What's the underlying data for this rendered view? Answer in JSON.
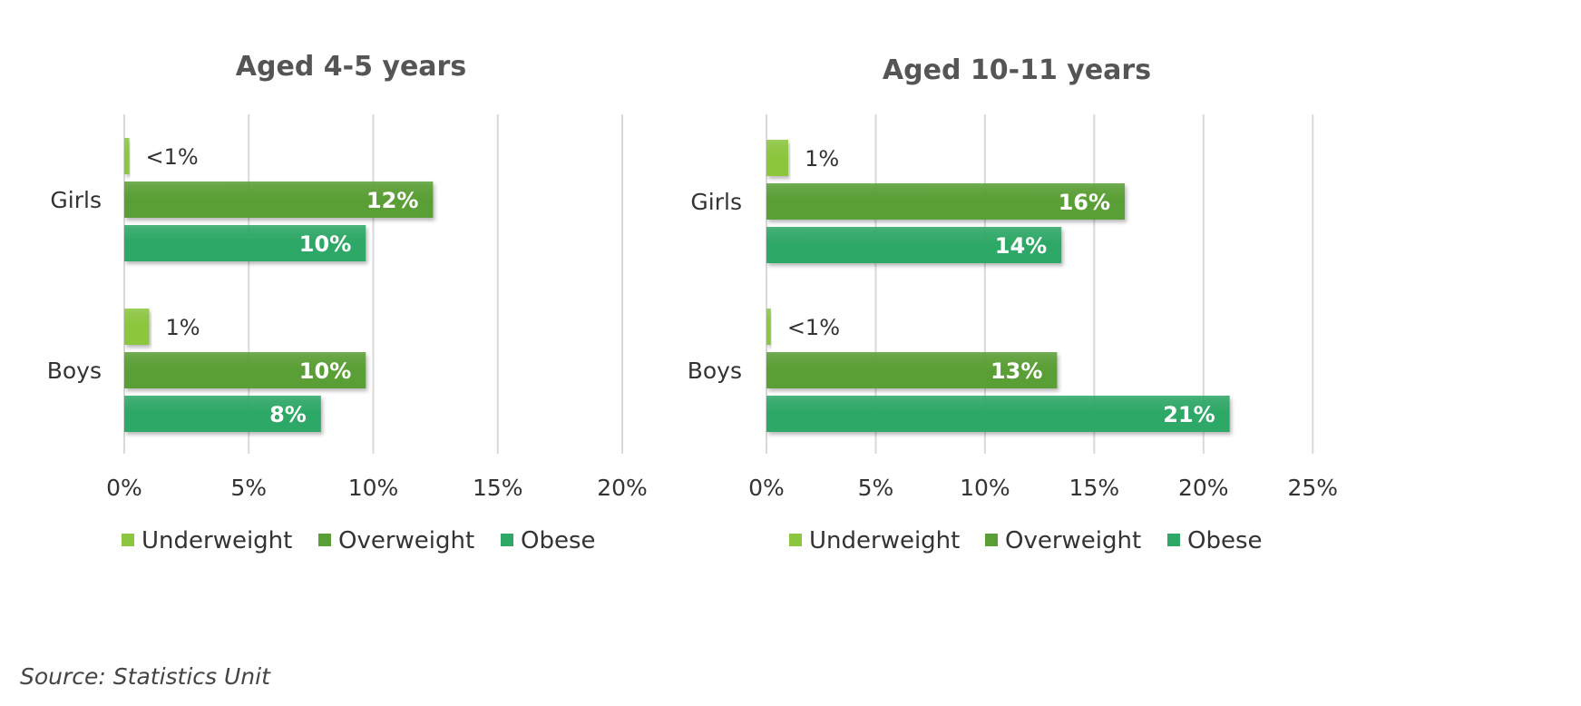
{
  "chart_data": [
    {
      "type": "bar",
      "orientation": "horizontal",
      "title": "Aged 4-5 years",
      "categories": [
        "Girls",
        "Boys"
      ],
      "xlim": [
        0,
        20
      ],
      "x_ticks": [
        "0%",
        "5%",
        "10%",
        "15%",
        "20%"
      ],
      "grid": true,
      "legend_position": "bottom",
      "series": [
        {
          "name": "Underweight",
          "color": "#8cc63e",
          "values": [
            0.2,
            1
          ],
          "labels": [
            "<1%",
            "1%"
          ]
        },
        {
          "name": "Overweight",
          "color": "#5a9f35",
          "values": [
            12.4,
            9.7
          ],
          "labels": [
            "12%",
            "10%"
          ]
        },
        {
          "name": "Obese",
          "color": "#2ea866",
          "values": [
            9.7,
            7.9
          ],
          "labels": [
            "10%",
            "8%"
          ]
        }
      ]
    },
    {
      "type": "bar",
      "orientation": "horizontal",
      "title": "Aged 10-11 years",
      "categories": [
        "Girls",
        "Boys"
      ],
      "xlim": [
        0,
        25
      ],
      "x_ticks": [
        "0%",
        "5%",
        "10%",
        "15%",
        "20%",
        "25%"
      ],
      "grid": true,
      "legend_position": "bottom",
      "series": [
        {
          "name": "Underweight",
          "color": "#8cc63e",
          "values": [
            1,
            0.2
          ],
          "labels": [
            "1%",
            "<1%"
          ]
        },
        {
          "name": "Overweight",
          "color": "#5a9f35",
          "values": [
            16.4,
            13.3
          ],
          "labels": [
            "16%",
            "13%"
          ]
        },
        {
          "name": "Obese",
          "color": "#2ea866",
          "values": [
            13.5,
            21.2
          ],
          "labels": [
            "14%",
            "21%"
          ]
        }
      ]
    }
  ],
  "source": "Source: Statistics Unit"
}
